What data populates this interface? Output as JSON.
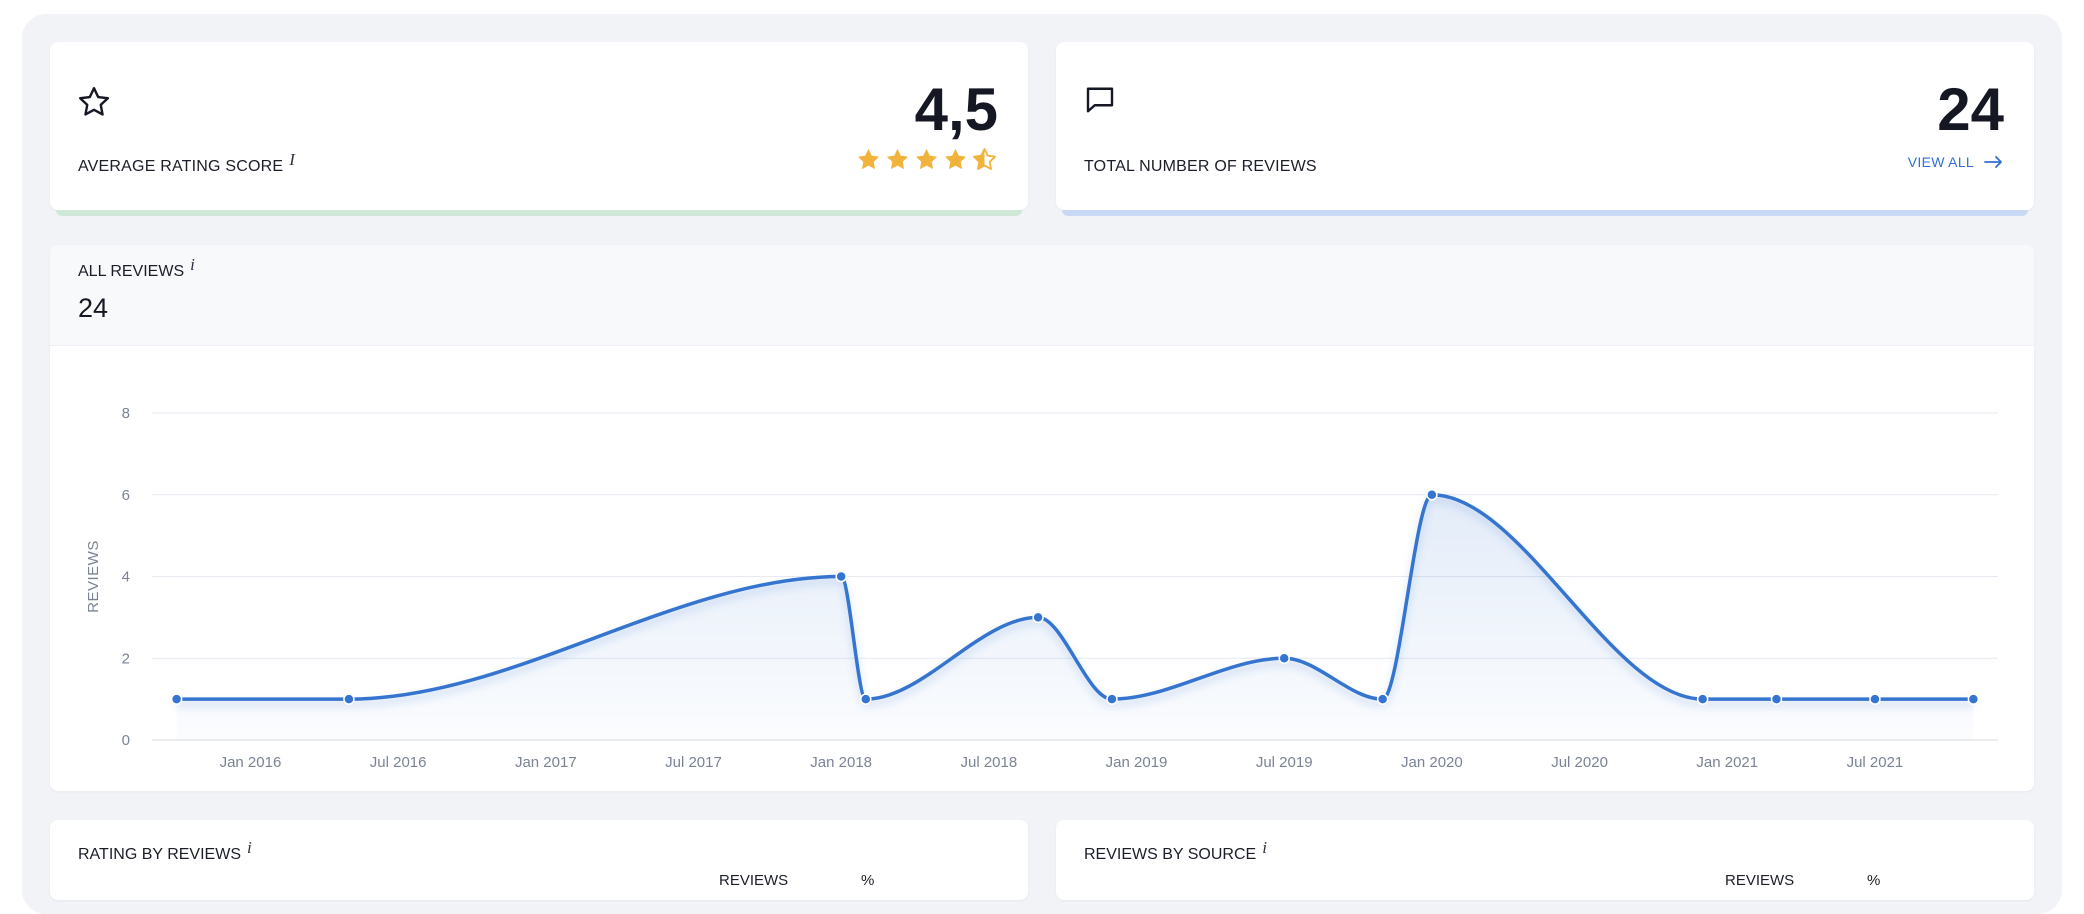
{
  "rating_card": {
    "label": "AVERAGE RATING SCORE",
    "info": "i",
    "value": "4,5",
    "stars": {
      "rating": 4.5,
      "max": 5
    },
    "icon": "star-outline-icon",
    "accent_color": "#cfe8d8"
  },
  "total_card": {
    "label": "TOTAL NUMBER OF REVIEWS",
    "value": "24",
    "view_all": "VIEW ALL",
    "icon": "comment-icon",
    "accent_color": "#c9d8f4"
  },
  "all_reviews": {
    "title": "ALL REVIEWS",
    "info": "i",
    "count": "24"
  },
  "rating_by_reviews": {
    "title": "RATING BY REVIEWS",
    "info": "i",
    "col_reviews": "REVIEWS",
    "col_pct": "%"
  },
  "reviews_by_source": {
    "title": "REVIEWS BY SOURCE",
    "info": "i",
    "col_reviews": "REVIEWS",
    "col_pct": "%"
  },
  "colors": {
    "line": "#3574d0",
    "star": "#f0b43c"
  },
  "chart_data": {
    "type": "area",
    "ylabel": "REVIEWS",
    "xlabel": "",
    "ylim": [
      0,
      8
    ],
    "yticks": [
      0,
      2,
      4,
      6,
      8
    ],
    "xlim": [
      "2015-09-01",
      "2021-12-01"
    ],
    "xticks": [
      "Jan 2016",
      "Jul 2016",
      "Jan 2017",
      "Jul 2017",
      "Jan 2018",
      "Jul 2018",
      "Jan 2019",
      "Jul 2019",
      "Jan 2020",
      "Jul 2020",
      "Jan 2021",
      "Jul 2021"
    ],
    "grid": true,
    "series": [
      {
        "points": [
          {
            "x": "2015-10",
            "y": 1
          },
          {
            "x": "2016-05",
            "y": 1
          },
          {
            "x": "2018-01",
            "y": 4
          },
          {
            "x": "2018-02",
            "y": 1
          },
          {
            "x": "2018-09",
            "y": 3
          },
          {
            "x": "2018-12",
            "y": 1
          },
          {
            "x": "2019-07",
            "y": 2
          },
          {
            "x": "2019-11",
            "y": 1
          },
          {
            "x": "2020-01",
            "y": 6
          },
          {
            "x": "2020-12",
            "y": 1
          },
          {
            "x": "2021-03",
            "y": 1
          },
          {
            "x": "2021-07",
            "y": 1
          },
          {
            "x": "2021-11",
            "y": 1
          }
        ]
      }
    ]
  }
}
